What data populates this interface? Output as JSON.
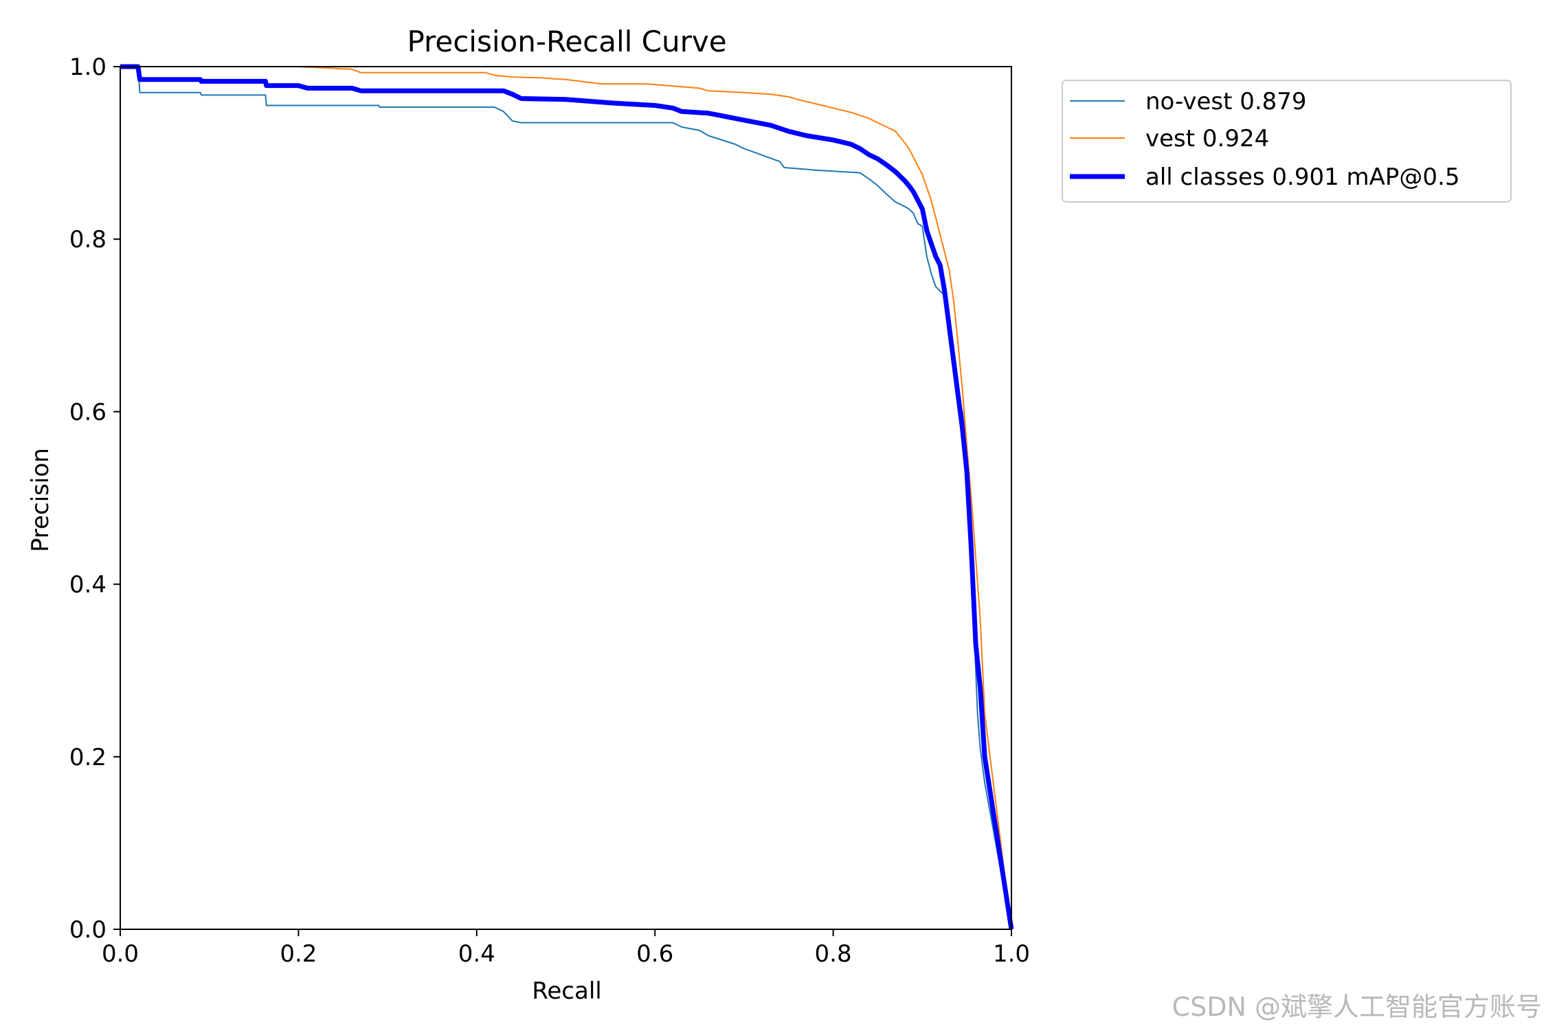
{
  "chart_data": {
    "type": "line",
    "title": "Precision-Recall Curve",
    "xlabel": "Recall",
    "ylabel": "Precision",
    "xlim": [
      0.0,
      1.0
    ],
    "ylim": [
      0.0,
      1.0
    ],
    "xticks": [
      "0.0",
      "0.2",
      "0.4",
      "0.6",
      "0.8",
      "1.0"
    ],
    "yticks": [
      "0.0",
      "0.2",
      "0.4",
      "0.6",
      "0.8",
      "1.0"
    ],
    "grid": false,
    "legend_position": "outside-upper-right",
    "series": [
      {
        "name": "no-vest 0.879",
        "color": "#1f77b4",
        "x": [
          0.0,
          0.02,
          0.022,
          0.09,
          0.091,
          0.163,
          0.164,
          0.29,
          0.291,
          0.42,
          0.43,
          0.44,
          0.45,
          0.5,
          0.56,
          0.62,
          0.63,
          0.65,
          0.66,
          0.69,
          0.7,
          0.74,
          0.745,
          0.77,
          0.78,
          0.83,
          0.84,
          0.85,
          0.86,
          0.87,
          0.88,
          0.885,
          0.89,
          0.895,
          0.9,
          0.905,
          0.91,
          0.915,
          0.92,
          0.925,
          0.93,
          0.935,
          0.94,
          0.945,
          0.95,
          0.955,
          0.96,
          0.962,
          0.965,
          0.97,
          1.0
        ],
        "y": [
          1.0,
          1.0,
          0.97,
          0.97,
          0.967,
          0.967,
          0.955,
          0.955,
          0.953,
          0.953,
          0.948,
          0.937,
          0.935,
          0.935,
          0.935,
          0.935,
          0.93,
          0.926,
          0.92,
          0.91,
          0.905,
          0.89,
          0.883,
          0.881,
          0.88,
          0.877,
          0.87,
          0.862,
          0.852,
          0.843,
          0.838,
          0.835,
          0.83,
          0.818,
          0.815,
          0.78,
          0.76,
          0.745,
          0.74,
          0.735,
          0.71,
          0.67,
          0.615,
          0.6,
          0.56,
          0.43,
          0.3,
          0.25,
          0.21,
          0.17,
          0.0
        ]
      },
      {
        "name": "vest 0.924",
        "color": "#ff7f0e",
        "x": [
          0.0,
          0.2,
          0.26,
          0.27,
          0.41,
          0.42,
          0.44,
          0.47,
          0.5,
          0.54,
          0.59,
          0.65,
          0.66,
          0.7,
          0.73,
          0.75,
          0.76,
          0.78,
          0.8,
          0.82,
          0.84,
          0.85,
          0.86,
          0.87,
          0.88,
          0.885,
          0.89,
          0.895,
          0.9,
          0.905,
          0.91,
          0.915,
          0.92,
          0.93,
          0.935,
          0.94,
          0.945,
          0.95,
          0.955,
          0.96,
          0.965,
          0.97,
          1.0
        ],
        "y": [
          1.0,
          1.0,
          0.997,
          0.993,
          0.993,
          0.99,
          0.988,
          0.987,
          0.985,
          0.98,
          0.98,
          0.975,
          0.972,
          0.97,
          0.968,
          0.965,
          0.962,
          0.957,
          0.952,
          0.947,
          0.94,
          0.935,
          0.93,
          0.925,
          0.912,
          0.905,
          0.895,
          0.885,
          0.875,
          0.86,
          0.845,
          0.825,
          0.805,
          0.765,
          0.73,
          0.68,
          0.625,
          0.56,
          0.5,
          0.43,
          0.36,
          0.25,
          0.0
        ]
      },
      {
        "name": "all classes 0.901 mAP@0.5",
        "color": "#0000ff",
        "x": [
          0.0,
          0.02,
          0.022,
          0.09,
          0.091,
          0.163,
          0.164,
          0.2,
          0.21,
          0.26,
          0.27,
          0.43,
          0.44,
          0.45,
          0.5,
          0.55,
          0.6,
          0.62,
          0.63,
          0.66,
          0.67,
          0.7,
          0.73,
          0.75,
          0.77,
          0.8,
          0.82,
          0.83,
          0.84,
          0.85,
          0.86,
          0.87,
          0.88,
          0.885,
          0.89,
          0.895,
          0.9,
          0.905,
          0.91,
          0.915,
          0.92,
          0.925,
          0.93,
          0.935,
          0.94,
          0.945,
          0.95,
          0.955,
          0.96,
          0.965,
          0.97,
          1.0
        ],
        "y": [
          1.0,
          1.0,
          0.985,
          0.985,
          0.983,
          0.983,
          0.978,
          0.978,
          0.975,
          0.975,
          0.972,
          0.972,
          0.968,
          0.963,
          0.962,
          0.958,
          0.955,
          0.952,
          0.948,
          0.946,
          0.944,
          0.938,
          0.932,
          0.925,
          0.92,
          0.915,
          0.91,
          0.905,
          0.898,
          0.893,
          0.886,
          0.878,
          0.868,
          0.862,
          0.855,
          0.845,
          0.835,
          0.81,
          0.795,
          0.78,
          0.77,
          0.74,
          0.7,
          0.66,
          0.62,
          0.58,
          0.53,
          0.44,
          0.33,
          0.28,
          0.2,
          0.0
        ]
      }
    ]
  },
  "watermark": "CSDN @斌擎人工智能官方账号"
}
